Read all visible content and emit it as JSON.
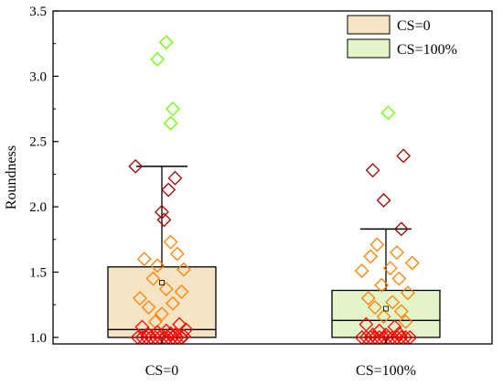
{
  "chart_data": {
    "type": "box",
    "ylabel": "Roundness",
    "xlabel": "",
    "ylim": [
      0.95,
      3.5
    ],
    "yticks": [
      1.0,
      1.5,
      2.0,
      2.5,
      3.0,
      3.5
    ],
    "ytick_labels": [
      "1.0",
      "1.5",
      "2.0",
      "2.5",
      "3.0",
      "3.5"
    ],
    "categories": [
      "CS=0",
      "CS=100%"
    ],
    "legend": {
      "placement": "top-right"
    },
    "series": [
      {
        "name": "CS=0",
        "box_color": "#f7e4c4",
        "stats": {
          "whisker_low": 1.0,
          "q1": 1.0,
          "median": 1.06,
          "mean": 1.42,
          "q3": 1.54,
          "whisker_high": 2.31
        },
        "points": [
          {
            "offset": -0.6,
            "y": 2.31
          },
          {
            "offset": 0.3,
            "y": 2.22
          },
          {
            "offset": 0.15,
            "y": 2.13
          },
          {
            "offset": 0.0,
            "y": 1.96
          },
          {
            "offset": 0.05,
            "y": 1.9
          },
          {
            "offset": -0.4,
            "y": 1.6
          },
          {
            "offset": 0.2,
            "y": 1.73
          },
          {
            "offset": 0.35,
            "y": 1.64
          },
          {
            "offset": -0.1,
            "y": 1.55
          },
          {
            "offset": 0.5,
            "y": 1.52
          },
          {
            "offset": -0.2,
            "y": 1.45
          },
          {
            "offset": 0.1,
            "y": 1.37
          },
          {
            "offset": -0.5,
            "y": 1.3
          },
          {
            "offset": 0.45,
            "y": 1.35
          },
          {
            "offset": -0.3,
            "y": 1.23
          },
          {
            "offset": 0.25,
            "y": 1.26
          },
          {
            "offset": 0.0,
            "y": 1.18
          },
          {
            "offset": -0.15,
            "y": 1.12
          },
          {
            "offset": 0.4,
            "y": 1.1
          },
          {
            "offset": -0.45,
            "y": 1.08
          },
          {
            "offset": 0.1,
            "y": 1.05
          },
          {
            "offset": 0.55,
            "y": 1.06
          },
          {
            "offset": -0.55,
            "y": 1.0
          },
          {
            "offset": -0.45,
            "y": 1.0
          },
          {
            "offset": -0.35,
            "y": 1.0
          },
          {
            "offset": -0.25,
            "y": 1.0
          },
          {
            "offset": -0.15,
            "y": 1.0
          },
          {
            "offset": -0.05,
            "y": 1.0
          },
          {
            "offset": 0.05,
            "y": 1.0
          },
          {
            "offset": 0.15,
            "y": 1.0
          },
          {
            "offset": 0.25,
            "y": 1.0
          },
          {
            "offset": 0.35,
            "y": 1.0
          },
          {
            "offset": 0.45,
            "y": 1.0
          },
          {
            "offset": -0.3,
            "y": 1.02
          },
          {
            "offset": 0.2,
            "y": 1.03
          },
          {
            "offset": -0.1,
            "y": 1.04
          },
          {
            "offset": 0.5,
            "y": 1.01
          },
          {
            "offset": 0.3,
            "y": 1.02
          },
          {
            "offset": 0.1,
            "y": 3.26
          },
          {
            "offset": -0.1,
            "y": 3.13
          },
          {
            "offset": 0.25,
            "y": 2.75
          },
          {
            "offset": 0.2,
            "y": 2.64
          }
        ]
      },
      {
        "name": "CS=100%",
        "box_color": "#e4f5c9",
        "stats": {
          "whisker_low": 1.0,
          "q1": 1.0,
          "median": 1.13,
          "mean": 1.22,
          "q3": 1.36,
          "whisker_high": 1.83
        },
        "points": [
          {
            "offset": 0.05,
            "y": 2.72
          },
          {
            "offset": 0.4,
            "y": 2.39
          },
          {
            "offset": -0.3,
            "y": 2.28
          },
          {
            "offset": -0.05,
            "y": 2.05
          },
          {
            "offset": 0.35,
            "y": 1.83
          },
          {
            "offset": -0.2,
            "y": 1.71
          },
          {
            "offset": 0.25,
            "y": 1.65
          },
          {
            "offset": -0.35,
            "y": 1.62
          },
          {
            "offset": 0.6,
            "y": 1.57
          },
          {
            "offset": 0.1,
            "y": 1.53
          },
          {
            "offset": -0.55,
            "y": 1.51
          },
          {
            "offset": 0.3,
            "y": 1.45
          },
          {
            "offset": -0.1,
            "y": 1.4
          },
          {
            "offset": 0.5,
            "y": 1.34
          },
          {
            "offset": -0.4,
            "y": 1.3
          },
          {
            "offset": 0.15,
            "y": 1.27
          },
          {
            "offset": -0.25,
            "y": 1.23
          },
          {
            "offset": 0.35,
            "y": 1.2
          },
          {
            "offset": -0.05,
            "y": 1.16
          },
          {
            "offset": 0.45,
            "y": 1.12
          },
          {
            "offset": -0.45,
            "y": 1.1
          },
          {
            "offset": 0.2,
            "y": 1.08
          },
          {
            "offset": -0.15,
            "y": 1.05
          },
          {
            "offset": -0.55,
            "y": 1.0
          },
          {
            "offset": -0.45,
            "y": 1.0
          },
          {
            "offset": -0.35,
            "y": 1.0
          },
          {
            "offset": -0.25,
            "y": 1.0
          },
          {
            "offset": -0.15,
            "y": 1.0
          },
          {
            "offset": -0.05,
            "y": 1.0
          },
          {
            "offset": 0.05,
            "y": 1.0
          },
          {
            "offset": 0.15,
            "y": 1.0
          },
          {
            "offset": 0.25,
            "y": 1.0
          },
          {
            "offset": 0.35,
            "y": 1.0
          },
          {
            "offset": 0.45,
            "y": 1.0
          },
          {
            "offset": 0.55,
            "y": 1.0
          },
          {
            "offset": -0.3,
            "y": 1.02
          },
          {
            "offset": 0.3,
            "y": 1.03
          },
          {
            "offset": 0.0,
            "y": 1.02
          }
        ]
      }
    ],
    "point_color_bins": [
      {
        "max": 1.1,
        "color": "#ff0000"
      },
      {
        "max": 1.8,
        "color": "#ff8000"
      },
      {
        "max": 2.5,
        "color": "#a00000"
      },
      {
        "max": 9.9,
        "color": "#66ff00"
      }
    ]
  }
}
